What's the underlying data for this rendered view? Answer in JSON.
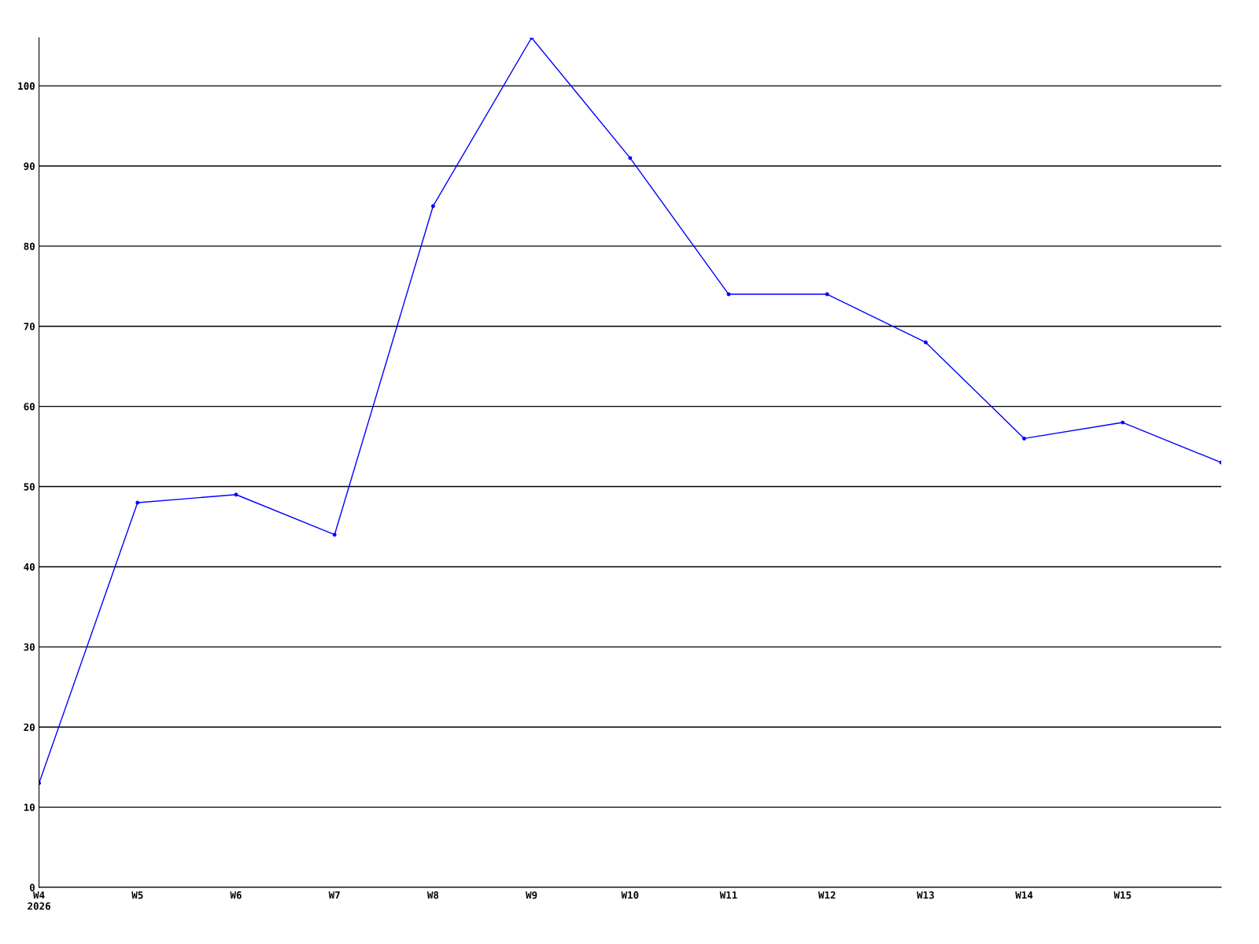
{
  "chart_data": {
    "type": "line",
    "categories": [
      "W4\n2026",
      "W5",
      "W6",
      "W7",
      "W8",
      "W9",
      "W10",
      "W11",
      "W12",
      "W13",
      "W14",
      "W15",
      null
    ],
    "series": [
      {
        "color": "#0000ff",
        "values": [
          13,
          48,
          49,
          44,
          85,
          106,
          91,
          74,
          74,
          68,
          56,
          58,
          53
        ]
      }
    ],
    "ylim": [
      0,
      106
    ],
    "yticks": [
      0,
      10,
      20,
      30,
      40,
      50,
      60,
      70,
      80,
      90,
      100
    ],
    "grid": "y",
    "marker": "circle",
    "line_style": "solid"
  }
}
